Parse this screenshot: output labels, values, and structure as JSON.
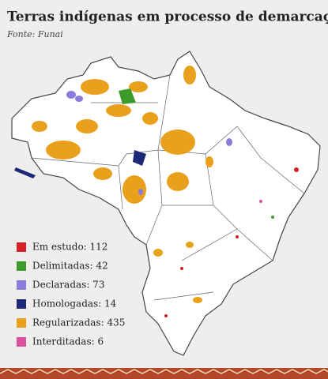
{
  "header": {
    "title": "Terras indígenas em processo de demarcação",
    "source": "Fonte: Funai"
  },
  "legend": [
    {
      "label": "Em estudo: 112",
      "color": "#d42027"
    },
    {
      "label": "Delimitadas: 42",
      "color": "#3d9b2c"
    },
    {
      "label": "Declaradas: 73",
      "color": "#8d7bdc"
    },
    {
      "label": "Homologadas: 14",
      "color": "#1d2878"
    },
    {
      "label": "Regularizadas: 435",
      "color": "#e9a11d"
    },
    {
      "label": "Interditadas: 6",
      "color": "#dc4f9e"
    }
  ]
}
